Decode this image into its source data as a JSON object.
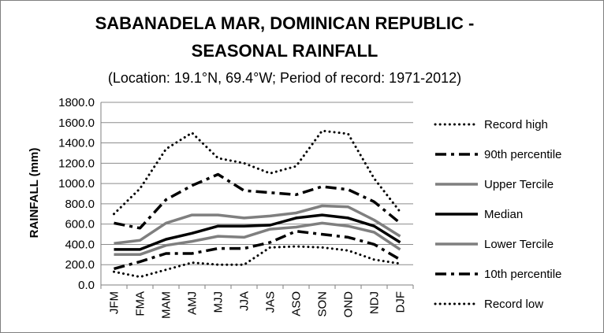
{
  "chart_data": {
    "type": "line",
    "title_lines": [
      "SABANADELA MAR, DOMINICAN REPUBLIC -",
      "SEASONAL RAINFALL"
    ],
    "subtitle": "(Location: 19.1°N, 69.4°W; Period of record: 1971-2012)",
    "xlabel": "",
    "ylabel": "RAINFALL (mm)",
    "ylim": [
      0,
      1800
    ],
    "ytick_values": [
      0,
      200,
      400,
      600,
      800,
      1000,
      1200,
      1400,
      1600,
      1800
    ],
    "ytick_labels": [
      "0.0",
      "200.0",
      "400.0",
      "600.0",
      "800.0",
      "1000.0",
      "1200.0",
      "1400.0",
      "1600.0",
      "1800.0"
    ],
    "grid": true,
    "legend_position": "right",
    "categories": [
      "JFM",
      "FMA",
      "MAM",
      "AMJ",
      "MJJ",
      "JJA",
      "JAS",
      "ASO",
      "SON",
      "OND",
      "NDJ",
      "DJF"
    ],
    "series": [
      {
        "name": "Record high",
        "color": "#000000",
        "style": "dotted",
        "values": [
          700,
          950,
          1340,
          1500,
          1250,
          1200,
          1100,
          1170,
          1520,
          1490,
          1050,
          720
        ]
      },
      {
        "name": "90th percentile",
        "color": "#000000",
        "style": "dashdot",
        "values": [
          610,
          560,
          840,
          980,
          1090,
          930,
          910,
          890,
          970,
          940,
          820,
          610
        ]
      },
      {
        "name": "Upper Tercile",
        "color": "#7f7f7f",
        "style": "solid",
        "values": [
          410,
          440,
          610,
          690,
          690,
          660,
          680,
          710,
          780,
          770,
          640,
          480
        ]
      },
      {
        "name": "Median",
        "color": "#000000",
        "style": "solid",
        "values": [
          350,
          350,
          450,
          510,
          580,
          580,
          590,
          660,
          690,
          660,
          580,
          420
        ]
      },
      {
        "name": "Lower Tercile",
        "color": "#7f7f7f",
        "style": "solid",
        "values": [
          300,
          300,
          390,
          430,
          480,
          470,
          550,
          570,
          610,
          580,
          520,
          350
        ]
      },
      {
        "name": "10th percentile",
        "color": "#000000",
        "style": "dashdot",
        "values": [
          160,
          230,
          310,
          310,
          360,
          360,
          420,
          530,
          500,
          470,
          400,
          250
        ]
      },
      {
        "name": "Record low",
        "color": "#000000",
        "style": "dotted",
        "values": [
          130,
          80,
          150,
          220,
          200,
          200,
          370,
          380,
          370,
          340,
          250,
          210
        ]
      }
    ]
  }
}
